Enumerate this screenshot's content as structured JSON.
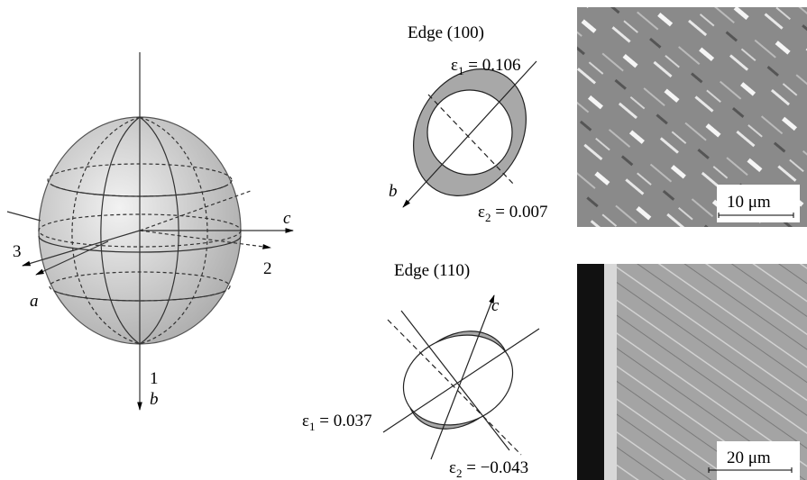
{
  "sphere_labels": [
    "c",
    "2",
    "3",
    "a",
    "1",
    "b"
  ],
  "panels": [
    {
      "title": "Edge (100)",
      "axis_label": "b",
      "strains": [
        {
          "symbol": "ε",
          "index": "1",
          "value": " = 0.106"
        },
        {
          "symbol": "ε",
          "index": "2",
          "value": " = 0.007"
        }
      ],
      "scale_bar": "10 μm"
    },
    {
      "title": "Edge (110)",
      "axis_label": "c",
      "strains": [
        {
          "symbol": "ε",
          "index": "1",
          "value": " = 0.037"
        },
        {
          "symbol": "ε",
          "index": "2",
          "value": " = −0.043"
        }
      ],
      "scale_bar": "20 μm"
    }
  ]
}
